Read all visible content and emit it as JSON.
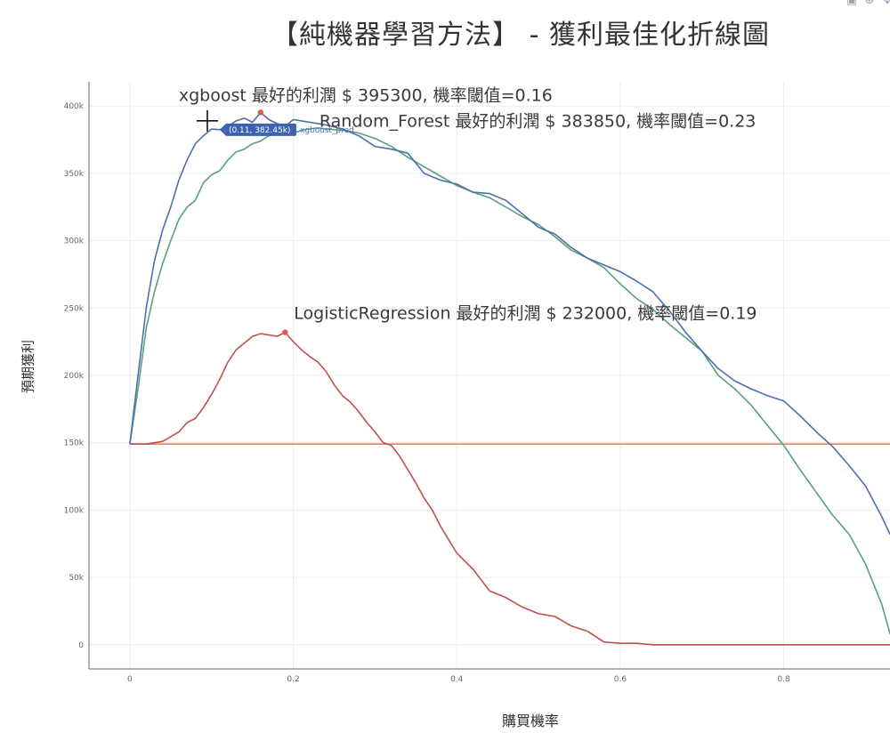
{
  "title": "【純機器學習方法】 - 獲利最佳化折線圖",
  "modebar": {
    "camera_icon": "camera-icon",
    "zoom_icon": "zoom-icon",
    "pan_icon": "pan-icon"
  },
  "chart_data": {
    "type": "line",
    "xlabel": "購買機率",
    "ylabel": "預期獲利",
    "xlim": [
      -0.05,
      0.93
    ],
    "ylim": [
      -18000,
      418000
    ],
    "x_ticks": [
      0,
      0.2,
      0.4,
      0.6,
      0.8
    ],
    "x_tick_labels": [
      "0",
      "0.2",
      "0.4",
      "0.6",
      "0.8"
    ],
    "y_ticks": [
      0,
      50000,
      100000,
      150000,
      200000,
      250000,
      300000,
      350000,
      400000
    ],
    "y_tick_labels": [
      "0",
      "50k",
      "100k",
      "150k",
      "200k",
      "250k",
      "300k",
      "350k",
      "400k"
    ],
    "grid": true,
    "colors": {
      "xgboost": "#4e6fae",
      "random_forest": "#5aa07a",
      "logistic": "#c0504d",
      "baseline": "#e8865a",
      "marker": "#e05a4e",
      "tooltip_bg": "#3d63b0"
    },
    "series": [
      {
        "name": "xgboost_pred",
        "color_key": "xgboost",
        "x": [
          0.0,
          0.01,
          0.02,
          0.03,
          0.04,
          0.05,
          0.06,
          0.07,
          0.08,
          0.09,
          0.1,
          0.11,
          0.12,
          0.13,
          0.14,
          0.15,
          0.16,
          0.17,
          0.18,
          0.19,
          0.2,
          0.22,
          0.24,
          0.26,
          0.28,
          0.3,
          0.32,
          0.34,
          0.36,
          0.38,
          0.4,
          0.42,
          0.44,
          0.46,
          0.48,
          0.5,
          0.52,
          0.54,
          0.56,
          0.58,
          0.6,
          0.62,
          0.64,
          0.66,
          0.68,
          0.7,
          0.72,
          0.74,
          0.76,
          0.78,
          0.8,
          0.82,
          0.84,
          0.86,
          0.88,
          0.9,
          0.92,
          0.93
        ],
        "y": [
          149000,
          200000,
          250000,
          285000,
          308000,
          325000,
          345000,
          360000,
          372000,
          378000,
          383000,
          382450,
          385000,
          389000,
          391000,
          388000,
          395300,
          390000,
          387000,
          385000,
          390000,
          388000,
          386000,
          383000,
          378000,
          370000,
          368000,
          365000,
          350000,
          345000,
          342000,
          336000,
          335000,
          330000,
          320000,
          310000,
          305000,
          295000,
          287000,
          282000,
          277000,
          270000,
          262000,
          248000,
          232000,
          218000,
          205000,
          196000,
          190000,
          185000,
          181000,
          170000,
          158000,
          147000,
          133000,
          118000,
          95000,
          82000
        ]
      },
      {
        "name": "Random_Forest",
        "color_key": "random_forest",
        "x": [
          0.0,
          0.01,
          0.02,
          0.03,
          0.04,
          0.05,
          0.06,
          0.07,
          0.08,
          0.09,
          0.1,
          0.11,
          0.12,
          0.13,
          0.14,
          0.15,
          0.16,
          0.17,
          0.18,
          0.19,
          0.2,
          0.21,
          0.22,
          0.23,
          0.24,
          0.26,
          0.28,
          0.3,
          0.32,
          0.34,
          0.36,
          0.38,
          0.4,
          0.42,
          0.44,
          0.46,
          0.48,
          0.5,
          0.52,
          0.54,
          0.56,
          0.58,
          0.6,
          0.62,
          0.64,
          0.66,
          0.68,
          0.7,
          0.72,
          0.74,
          0.76,
          0.78,
          0.8,
          0.82,
          0.84,
          0.86,
          0.88,
          0.9,
          0.92,
          0.93
        ],
        "y": [
          149000,
          190000,
          235000,
          262000,
          283000,
          300000,
          316000,
          325000,
          330000,
          343000,
          349000,
          352000,
          360000,
          366000,
          368000,
          372000,
          374000,
          378000,
          380000,
          381000,
          380000,
          382000,
          383000,
          383850,
          383000,
          382000,
          380000,
          376000,
          370000,
          362000,
          355000,
          348000,
          341000,
          336000,
          332000,
          325000,
          318000,
          312000,
          303000,
          293000,
          287000,
          280000,
          268000,
          257000,
          249000,
          238000,
          228000,
          218000,
          200000,
          190000,
          178000,
          163000,
          148000,
          130000,
          113000,
          96000,
          82000,
          60000,
          30000,
          8000
        ]
      },
      {
        "name": "LogisticRegression",
        "color_key": "logistic",
        "x": [
          0.0,
          0.02,
          0.04,
          0.06,
          0.07,
          0.08,
          0.09,
          0.1,
          0.11,
          0.12,
          0.13,
          0.14,
          0.15,
          0.16,
          0.17,
          0.18,
          0.19,
          0.2,
          0.21,
          0.22,
          0.23,
          0.24,
          0.25,
          0.26,
          0.27,
          0.28,
          0.29,
          0.3,
          0.31,
          0.32,
          0.33,
          0.34,
          0.35,
          0.36,
          0.37,
          0.38,
          0.39,
          0.4,
          0.42,
          0.44,
          0.46,
          0.48,
          0.5,
          0.52,
          0.54,
          0.56,
          0.58,
          0.6,
          0.62,
          0.64,
          0.66,
          0.68,
          0.7,
          0.75,
          0.8,
          0.85,
          0.9,
          0.93
        ],
        "y": [
          149000,
          149000,
          151000,
          158000,
          165000,
          168000,
          176000,
          186000,
          197000,
          210000,
          219000,
          224000,
          229000,
          231000,
          230000,
          229000,
          232000,
          225000,
          219000,
          214000,
          210000,
          203000,
          193000,
          185000,
          180000,
          173000,
          165000,
          158000,
          150000,
          148000,
          140000,
          130000,
          120000,
          109000,
          100000,
          88000,
          78000,
          68000,
          56000,
          40000,
          35000,
          28000,
          23000,
          21000,
          14000,
          10000,
          2000,
          1000,
          1000,
          0,
          0,
          0,
          0,
          0,
          0,
          0,
          0,
          0
        ]
      },
      {
        "name": "baseline",
        "color_key": "baseline",
        "x": [
          0.0,
          0.93
        ],
        "y": [
          149000,
          149000
        ]
      }
    ],
    "annotations": [
      {
        "text": "xgboost 最好的利潤 $ 395300, 機率閾值=0.16",
        "x": 0.16,
        "y": 395300
      },
      {
        "text": "Random_Forest 最好的利潤 $ 383850, 機率閾值=0.23",
        "x": 0.23,
        "y": 383850
      },
      {
        "text": "LogisticRegression 最好的利潤 $ 232000, 機率閾值=0.19",
        "x": 0.19,
        "y": 232000
      }
    ],
    "markers": [
      {
        "series": "xgboost_pred",
        "x": 0.16,
        "y": 395300
      },
      {
        "series": "LogisticRegression",
        "x": 0.19,
        "y": 232000
      }
    ],
    "hover": {
      "value_text": "(0.11, 382.45k)",
      "series_text": "xgboost_pred",
      "x": 0.11,
      "y": 382450
    }
  }
}
